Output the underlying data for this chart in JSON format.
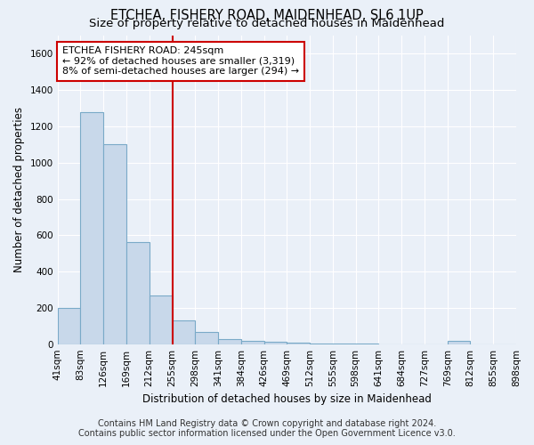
{
  "title": "ETCHEA, FISHERY ROAD, MAIDENHEAD, SL6 1UP",
  "subtitle": "Size of property relative to detached houses in Maidenhead",
  "xlabel": "Distribution of detached houses by size in Maidenhead",
  "ylabel": "Number of detached properties",
  "footer_line1": "Contains HM Land Registry data © Crown copyright and database right 2024.",
  "footer_line2": "Contains public sector information licensed under the Open Government Licence v3.0.",
  "bin_labels": [
    "41sqm",
    "83sqm",
    "126sqm",
    "169sqm",
    "212sqm",
    "255sqm",
    "298sqm",
    "341sqm",
    "384sqm",
    "426sqm",
    "469sqm",
    "512sqm",
    "555sqm",
    "598sqm",
    "641sqm",
    "684sqm",
    "727sqm",
    "769sqm",
    "812sqm",
    "855sqm",
    "898sqm"
  ],
  "bar_heights": [
    200,
    1280,
    1100,
    560,
    270,
    130,
    65,
    30,
    20,
    15,
    10,
    5,
    5,
    5,
    0,
    0,
    0,
    20,
    0,
    0
  ],
  "bar_color": "#c8d8ea",
  "bar_edge_color": "#7aaac8",
  "vline_bin_index": 5,
  "vline_color": "#cc0000",
  "annotation_text": "ETCHEA FISHERY ROAD: 245sqm\n← 92% of detached houses are smaller (3,319)\n8% of semi-detached houses are larger (294) →",
  "annotation_box_color": "#ffffff",
  "annotation_box_edge": "#cc0000",
  "ylim": [
    0,
    1700
  ],
  "yticks": [
    0,
    200,
    400,
    600,
    800,
    1000,
    1200,
    1400,
    1600
  ],
  "bg_color": "#eaf0f8",
  "grid_color": "#ffffff",
  "title_fontsize": 10.5,
  "subtitle_fontsize": 9.5,
  "axis_label_fontsize": 8.5,
  "tick_fontsize": 7.5,
  "footer_fontsize": 7
}
